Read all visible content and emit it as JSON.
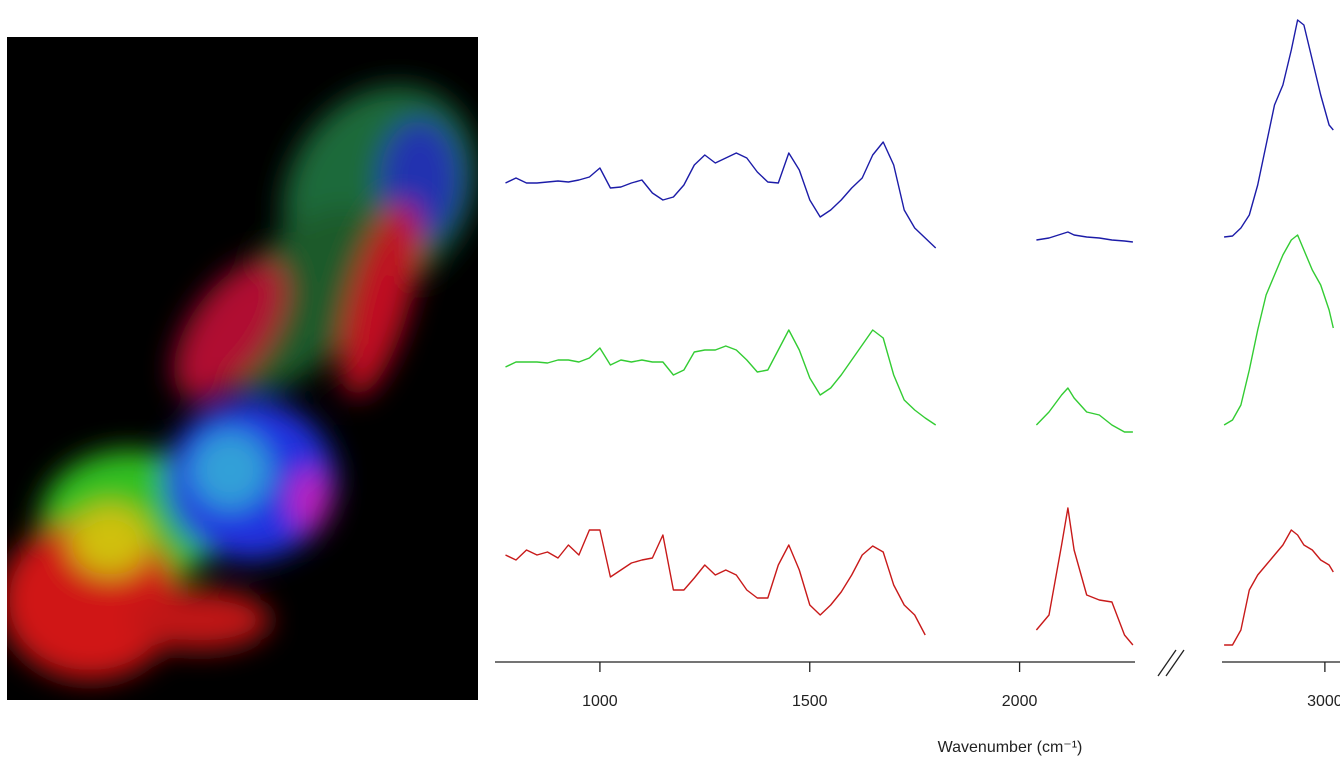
{
  "chart_data": {
    "type": "line",
    "xlabel": "Wavenumber  (cm⁻¹)",
    "xlim": [
      750,
      3036
    ],
    "xbreak": [
      2275,
      2755
    ],
    "xticks": [
      1000,
      1500,
      2000,
      3000
    ],
    "ylim": [
      0,
      650
    ],
    "x": [
      775,
      800,
      825,
      850,
      875,
      900,
      925,
      950,
      975,
      1000,
      1025,
      1050,
      1075,
      1100,
      1125,
      1150,
      1175,
      1200,
      1225,
      1250,
      1275,
      1300,
      1325,
      1350,
      1375,
      1400,
      1425,
      1450,
      1475,
      1500,
      1525,
      1550,
      1575,
      1600,
      1625,
      1650,
      1675,
      1700,
      1725,
      1750,
      1775,
      1800,
      1920,
      2040,
      2070,
      2100,
      2115,
      2130,
      2160,
      2190,
      2220,
      2250,
      2270,
      2500,
      2760,
      2780,
      2800,
      2820,
      2840,
      2860,
      2880,
      2900,
      2920,
      2935,
      2950,
      2970,
      2990,
      3010,
      3020
    ],
    "series": [
      {
        "color": "#1c1ca8",
        "values": [
          479,
          484,
          479,
          479,
          480,
          481,
          480,
          482,
          485,
          494,
          474,
          475,
          479,
          482,
          469,
          462,
          465,
          477,
          497,
          507,
          499,
          504,
          509,
          504,
          490,
          480,
          479,
          509,
          492,
          462,
          445,
          452,
          462,
          474,
          484,
          507,
          520,
          497,
          452,
          434,
          424,
          414,
          null,
          422,
          424,
          428,
          430,
          427,
          425,
          424,
          422,
          421,
          420,
          null,
          425,
          426,
          434,
          447,
          477,
          517,
          557,
          577,
          612,
          642,
          637,
          602,
          567,
          537,
          532
        ]
      },
      {
        "color": "#33cc33",
        "values": [
          295,
          300,
          300,
          300,
          299,
          302,
          302,
          300,
          304,
          314,
          297,
          302,
          300,
          302,
          300,
          300,
          287,
          292,
          310,
          312,
          312,
          316,
          312,
          302,
          290,
          292,
          312,
          332,
          312,
          284,
          267,
          274,
          287,
          302,
          317,
          332,
          324,
          287,
          262,
          252,
          244,
          237,
          null,
          237,
          250,
          267,
          274,
          264,
          250,
          247,
          237,
          230,
          230,
          null,
          237,
          242,
          257,
          292,
          332,
          367,
          387,
          407,
          422,
          427,
          412,
          392,
          377,
          352,
          334
        ]
      },
      {
        "color": "#c81a1a",
        "values": [
          107,
          102,
          112,
          107,
          110,
          104,
          117,
          107,
          132,
          132,
          85,
          92,
          99,
          102,
          104,
          127,
          72,
          72,
          84,
          97,
          87,
          92,
          87,
          72,
          64,
          64,
          97,
          117,
          92,
          57,
          47,
          57,
          70,
          87,
          107,
          116,
          110,
          77,
          57,
          47,
          27,
          null,
          null,
          32,
          47,
          117,
          154,
          112,
          67,
          62,
          60,
          27,
          17,
          null,
          17,
          17,
          32,
          72,
          87,
          97,
          107,
          117,
          132,
          127,
          117,
          112,
          102,
          97,
          90
        ]
      }
    ]
  }
}
